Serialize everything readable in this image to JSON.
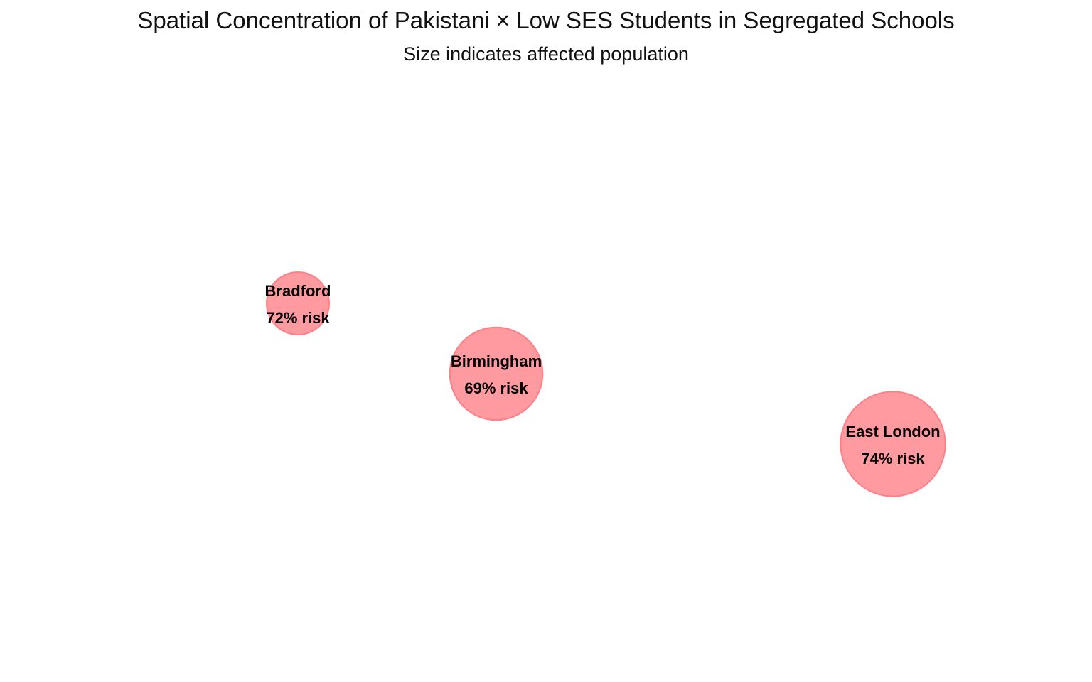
{
  "chart_data": {
    "type": "scatter",
    "title": "Spatial Concentration of Pakistani × Low SES Students in Segregated Schools",
    "subtitle": "Size indicates affected population",
    "xlabel": "",
    "ylabel": "",
    "grid": false,
    "legend": "none",
    "marker_color": "#ff7f87",
    "marker_fill": "#ff9aa0",
    "risk_suffix": "% risk",
    "points": [
      {
        "name": "Bradford",
        "risk": 72,
        "risk_label": "72% risk",
        "size": 1
      },
      {
        "name": "Birmingham",
        "risk": 69,
        "risk_label": "69% risk",
        "size": 2.2
      },
      {
        "name": "East London",
        "risk": 74,
        "risk_label": "74% risk",
        "size": 2.8
      }
    ]
  }
}
